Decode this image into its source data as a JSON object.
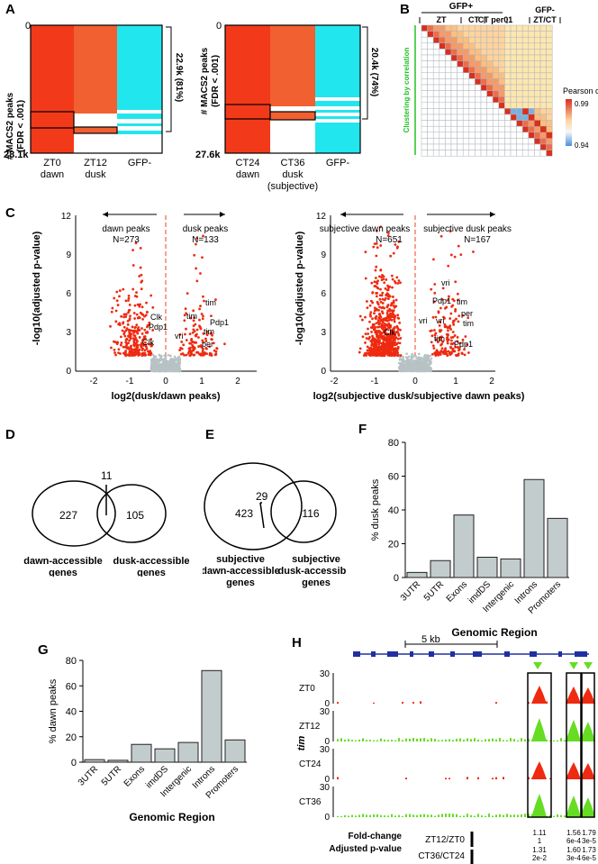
{
  "panel_letters": [
    "A",
    "B",
    "C",
    "D",
    "E",
    "F",
    "G",
    "H"
  ],
  "panelA": {
    "left": {
      "top_label": "0",
      "bottom_label": "28.1k",
      "ylabel": [
        "# MACS2 peaks",
        "(FDR < .001)"
      ],
      "bracket_label": "22.9k (81%)",
      "columns": [
        [
          "ZT0",
          "dawn"
        ],
        [
          "ZT12",
          "dusk"
        ],
        [
          "GFP-"
        ]
      ]
    },
    "right": {
      "top_label": "0",
      "bottom_label": "27.6k",
      "bracket_label": "20.4k (74%)",
      "columns": [
        [
          "CT24",
          "dawn"
        ],
        [
          "CT36",
          "dusk",
          "(subjective)"
        ],
        [
          "GFP-"
        ]
      ]
    },
    "colors": {
      "dawn": "#f23a1a",
      "dusk": "#f06030",
      "gfp": "#22e6ee"
    }
  },
  "panelB": {
    "group_top": "GFP+",
    "groups": [
      "ZT",
      "CT",
      "CT per01",
      "GFP-",
      "ZT/CT"
    ],
    "side_label": "Clustering by correlation",
    "legend_title": "Pearson cor.",
    "legend_max": "0.99",
    "legend_min": "0.94"
  },
  "panelC": {
    "left": {
      "xlabel": "log2(dusk/dawn peaks)",
      "ylabel": "-log10(adjusted p-value)",
      "arrow_left": "dawn peaks",
      "n_left": "N=273",
      "arrow_right": "dusk peaks",
      "n_right": "N=133",
      "gene_labels": [
        "Clk",
        "Pdp1",
        "Clk",
        "tim",
        "tim",
        "Pdp1",
        "vri",
        "tim",
        "per"
      ],
      "yticks": [
        "0",
        "3",
        "6",
        "9",
        "12"
      ],
      "xticks": [
        "-2",
        "-1",
        "0",
        "1",
        "2"
      ]
    },
    "right": {
      "xlabel": "log2(subjective dusk/subjective dawn peaks)",
      "ylabel": "-log10(adjusted p-value)",
      "arrow_left": "subjective dawn peaks",
      "n_left": "N=651",
      "arrow_right": "subjective dusk peaks",
      "n_right": "N=167",
      "gene_labels": [
        "vri",
        "Pdp1",
        "tim",
        "per",
        "vri",
        "tim",
        "vri",
        "Clk",
        "tim",
        "Pdp1"
      ],
      "yticks": [
        "0",
        "3",
        "6",
        "9",
        "12"
      ],
      "xticks": [
        "-2",
        "-1",
        "0",
        "1",
        "2"
      ]
    }
  },
  "panelD": {
    "left": "227",
    "overlap": "11",
    "right": "105",
    "label_left": [
      "dawn-accessible",
      "genes"
    ],
    "label_right": [
      "dusk-accessible",
      "genes"
    ]
  },
  "panelE": {
    "left": "423",
    "overlap": "29",
    "right": "116",
    "label_left": [
      "subjective",
      "dawn-accessible",
      "genes"
    ],
    "label_right": [
      "subjective",
      "dusk-accessible",
      "genes"
    ]
  },
  "panelH": {
    "scale": "5 kb",
    "gene": "tim",
    "tracks": [
      "ZT0",
      "ZT12",
      "CT24",
      "CT36"
    ],
    "ymax": "30",
    "ymin": "0",
    "fc_label": "Fold-change",
    "p_label": "Adjusted p-value",
    "row1_name": "ZT12/ZT0",
    "row2_name": "CT36/CT24",
    "row1_vals": [
      [
        "1.11",
        "1"
      ],
      [
        "1.56",
        "6e-4"
      ],
      [
        "1.79",
        "3e-5"
      ]
    ],
    "row2_vals": [
      [
        "1.31",
        "2e-2"
      ],
      [
        "1.60",
        "3e-4"
      ],
      [
        "1.73",
        "6e-5"
      ]
    ]
  },
  "chart_data": [
    {
      "type": "bar",
      "panel": "F",
      "categories": [
        "3UTR",
        "5UTR",
        "Exons",
        "imdDS",
        "Intergenic",
        "Introns",
        "Promoters"
      ],
      "values": [
        3,
        10,
        37,
        12,
        11,
        58,
        35
      ],
      "ylabel": "% dusk peaks",
      "xlabel": "Genomic Region",
      "ylim": [
        0,
        80
      ],
      "yticks": [
        "0",
        "20",
        "40",
        "60",
        "80"
      ]
    },
    {
      "type": "bar",
      "panel": "G",
      "categories": [
        "3UTR",
        "5UTR",
        "Exons",
        "imdDS",
        "Intergenic",
        "Introns",
        "Promoters"
      ],
      "values": [
        2,
        1.5,
        14,
        10.5,
        15.5,
        72,
        17.5
      ],
      "ylabel": "% dawn peaks",
      "xlabel": "Genomic Region",
      "ylim": [
        0,
        80
      ],
      "yticks": [
        "0",
        "20",
        "40",
        "60",
        "80"
      ]
    }
  ]
}
